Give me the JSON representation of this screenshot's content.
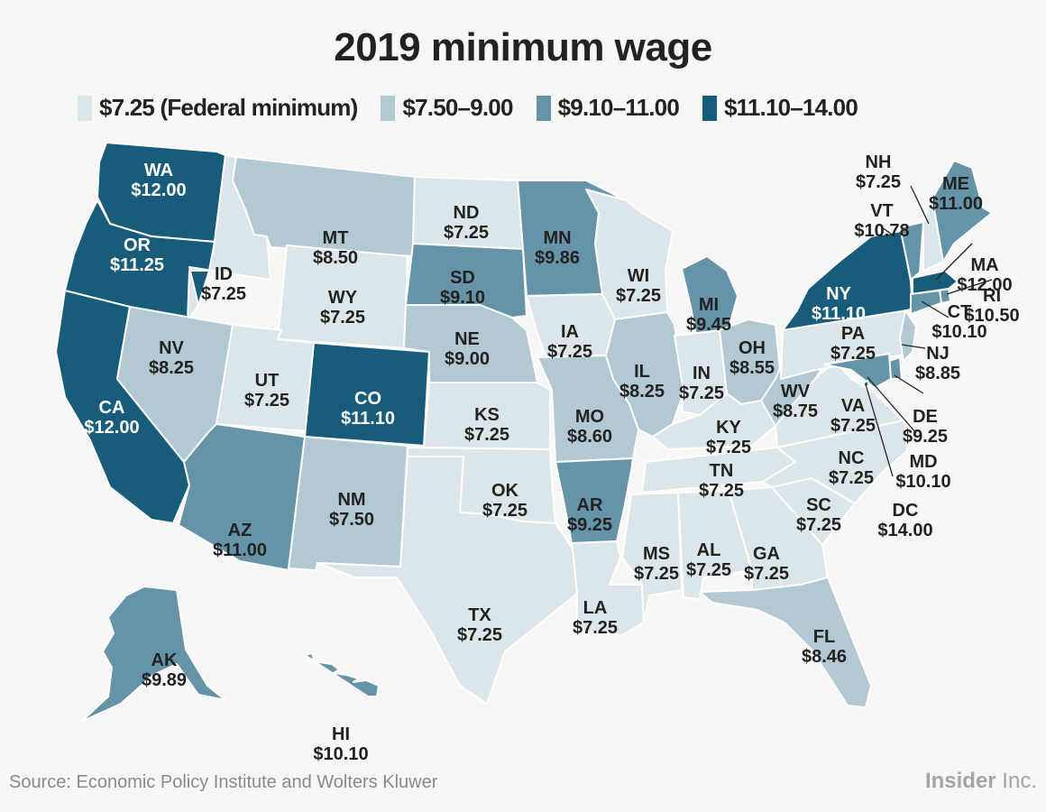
{
  "title": "2019 minimum wage",
  "source": "Source: Economic Policy Institute and Wolters Kluwer",
  "brand": {
    "bold": "Insider",
    "regular": " Inc."
  },
  "colors": {
    "background": "#f7f7f7",
    "text_dark": "#222222",
    "text_light": "#ffffff"
  },
  "chart_data": {
    "type": "choropleth",
    "title": "2019 minimum wage",
    "legend_placement": "top",
    "legend": [
      {
        "id": "b1",
        "label": "$7.25 (Federal minimum)",
        "color": "#dbe6eb"
      },
      {
        "id": "b2",
        "label": "$7.50–9.00",
        "color": "#b2c9d4"
      },
      {
        "id": "b3",
        "label": "$9.10–11.00",
        "color": "#6593a8"
      },
      {
        "id": "b4",
        "label": "$11.10–14.00",
        "color": "#175d7b"
      }
    ],
    "states": [
      {
        "code": "WA",
        "wage": "$12.00",
        "bin": "b4"
      },
      {
        "code": "OR",
        "wage": "$11.25",
        "bin": "b4"
      },
      {
        "code": "CA",
        "wage": "$12.00",
        "bin": "b4"
      },
      {
        "code": "ID",
        "wage": "$7.25",
        "bin": "b1"
      },
      {
        "code": "NV",
        "wage": "$8.25",
        "bin": "b2"
      },
      {
        "code": "MT",
        "wage": "$8.50",
        "bin": "b2"
      },
      {
        "code": "WY",
        "wage": "$7.25",
        "bin": "b1"
      },
      {
        "code": "UT",
        "wage": "$7.25",
        "bin": "b1"
      },
      {
        "code": "AZ",
        "wage": "$11.00",
        "bin": "b3"
      },
      {
        "code": "CO",
        "wage": "$11.10",
        "bin": "b4"
      },
      {
        "code": "NM",
        "wage": "$7.50",
        "bin": "b2"
      },
      {
        "code": "ND",
        "wage": "$7.25",
        "bin": "b1"
      },
      {
        "code": "SD",
        "wage": "$9.10",
        "bin": "b3"
      },
      {
        "code": "NE",
        "wage": "$9.00",
        "bin": "b2"
      },
      {
        "code": "KS",
        "wage": "$7.25",
        "bin": "b1"
      },
      {
        "code": "OK",
        "wage": "$7.25",
        "bin": "b1"
      },
      {
        "code": "TX",
        "wage": "$7.25",
        "bin": "b1"
      },
      {
        "code": "MN",
        "wage": "$9.86",
        "bin": "b3"
      },
      {
        "code": "IA",
        "wage": "$7.25",
        "bin": "b1"
      },
      {
        "code": "MO",
        "wage": "$8.60",
        "bin": "b2"
      },
      {
        "code": "AR",
        "wage": "$9.25",
        "bin": "b3"
      },
      {
        "code": "LA",
        "wage": "$7.25",
        "bin": "b1"
      },
      {
        "code": "WI",
        "wage": "$7.25",
        "bin": "b1"
      },
      {
        "code": "IL",
        "wage": "$8.25",
        "bin": "b2"
      },
      {
        "code": "MI",
        "wage": "$9.45",
        "bin": "b3"
      },
      {
        "code": "IN",
        "wage": "$7.25",
        "bin": "b1"
      },
      {
        "code": "OH",
        "wage": "$8.55",
        "bin": "b2"
      },
      {
        "code": "KY",
        "wage": "$7.25",
        "bin": "b1"
      },
      {
        "code": "TN",
        "wage": "$7.25",
        "bin": "b1"
      },
      {
        "code": "MS",
        "wage": "$7.25",
        "bin": "b1"
      },
      {
        "code": "AL",
        "wage": "$7.25",
        "bin": "b1"
      },
      {
        "code": "GA",
        "wage": "$7.25",
        "bin": "b1"
      },
      {
        "code": "FL",
        "wage": "$8.46",
        "bin": "b2"
      },
      {
        "code": "SC",
        "wage": "$7.25",
        "bin": "b1"
      },
      {
        "code": "NC",
        "wage": "$7.25",
        "bin": "b1"
      },
      {
        "code": "VA",
        "wage": "$7.25",
        "bin": "b1"
      },
      {
        "code": "WV",
        "wage": "$8.75",
        "bin": "b2"
      },
      {
        "code": "PA",
        "wage": "$7.25",
        "bin": "b1"
      },
      {
        "code": "NY",
        "wage": "$11.10",
        "bin": "b4"
      },
      {
        "code": "VT",
        "wage": "$10.78",
        "bin": "b3"
      },
      {
        "code": "NH",
        "wage": "$7.25",
        "bin": "b1"
      },
      {
        "code": "ME",
        "wage": "$11.00",
        "bin": "b3"
      },
      {
        "code": "MA",
        "wage": "$12.00",
        "bin": "b4"
      },
      {
        "code": "RI",
        "wage": "$10.50",
        "bin": "b3"
      },
      {
        "code": "CT",
        "wage": "$10.10",
        "bin": "b3"
      },
      {
        "code": "NJ",
        "wage": "$8.85",
        "bin": "b2"
      },
      {
        "code": "DE",
        "wage": "$9.25",
        "bin": "b3"
      },
      {
        "code": "MD",
        "wage": "$10.10",
        "bin": "b3"
      },
      {
        "code": "DC",
        "wage": "$14.00",
        "bin": "b4"
      },
      {
        "code": "AK",
        "wage": "$9.89",
        "bin": "b3"
      },
      {
        "code": "HI",
        "wage": "$10.10",
        "bin": "b3"
      }
    ]
  }
}
